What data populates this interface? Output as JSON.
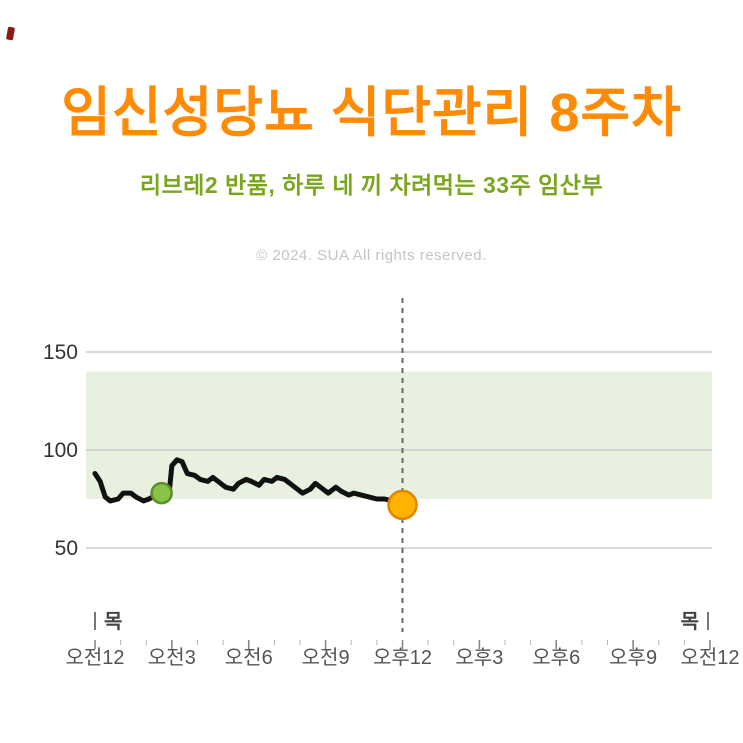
{
  "header": {
    "title": "임신성당뇨 식단관리 8주차",
    "subtitle": "리브레2 반품, 하루 네 끼 차려먹는 33주 임산부",
    "copyright": "© 2024. SUA All rights reserved."
  },
  "chart_data": {
    "type": "line",
    "title": "",
    "xlabel": "",
    "ylabel": "",
    "x_ticks": [
      "오전12",
      "오전3",
      "오전6",
      "오전9",
      "오후12",
      "오후3",
      "오후6",
      "오후9",
      "오전12"
    ],
    "x_tick_hours": [
      0,
      3,
      6,
      9,
      12,
      15,
      18,
      21,
      24
    ],
    "y_ticks": [
      150,
      100,
      50
    ],
    "ylim": [
      30,
      185
    ],
    "xlim_hours": [
      0,
      24
    ],
    "grid": true,
    "target_band": {
      "low": 75,
      "high": 140
    },
    "current_time_hour": 12,
    "day_label_left": "목",
    "day_label_right": "목",
    "series": [
      {
        "name": "glucose",
        "x": [
          0,
          0.2,
          0.4,
          0.6,
          0.9,
          1.1,
          1.4,
          1.6,
          1.9,
          2.1,
          2.4,
          2.6,
          2.9,
          3.0,
          3.2,
          3.4,
          3.6,
          3.9,
          4.1,
          4.4,
          4.6,
          4.9,
          5.1,
          5.4,
          5.6,
          5.9,
          6.1,
          6.4,
          6.6,
          6.9,
          7.1,
          7.4,
          7.6,
          7.9,
          8.1,
          8.4,
          8.6,
          8.9,
          9.1,
          9.4,
          9.6,
          9.9,
          10.1,
          10.4,
          10.7,
          11.0,
          11.3,
          11.6,
          12.0
        ],
        "values": [
          88,
          84,
          76,
          74,
          75,
          78,
          78,
          76,
          74,
          75,
          77,
          78,
          79,
          92,
          95,
          94,
          88,
          87,
          85,
          84,
          86,
          83,
          81,
          80,
          83,
          85,
          84,
          82,
          85,
          84,
          86,
          85,
          83,
          80,
          78,
          80,
          83,
          80,
          78,
          81,
          79,
          77,
          78,
          77,
          76,
          75,
          75,
          74,
          72
        ]
      }
    ],
    "markers": [
      {
        "name": "scan-point",
        "hour": 2.6,
        "value": 78
      },
      {
        "name": "current-point",
        "hour": 12,
        "value": 72
      }
    ],
    "colors": {
      "line": "#111111",
      "band": "#e8f1e0",
      "scan_marker": "#8bc34a",
      "current_marker": "#ffb300",
      "dashed_line": "#666666"
    }
  }
}
